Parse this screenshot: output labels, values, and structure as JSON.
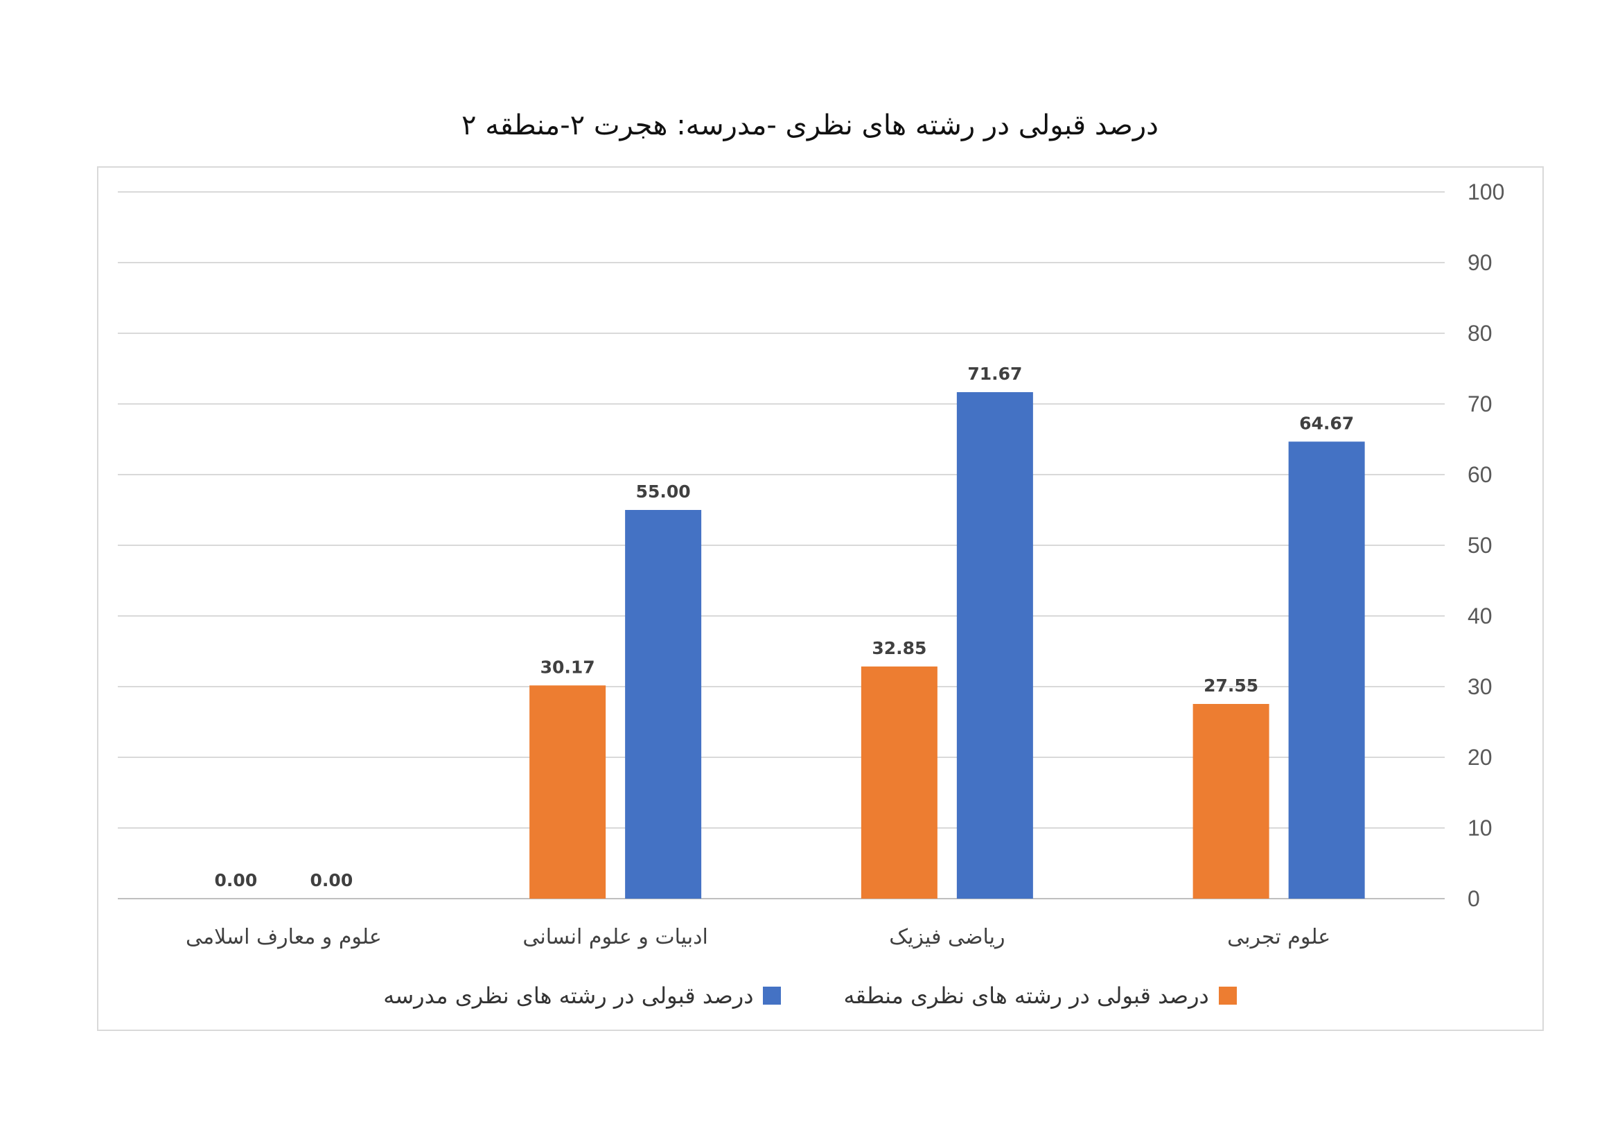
{
  "chart_data": {
    "type": "bar",
    "title": "درصد قبولی در رشته های نظری -مدرسه: هجرت ۲-منطقه ۲",
    "categories": [
      "علوم تجربی",
      "ریاضی فیزیک",
      "ادبیات و علوم انسانی",
      "علوم و معارف اسلامی"
    ],
    "series": [
      {
        "name": "درصد قبولی در رشته های نظری منطقه",
        "color": "#ED7D31",
        "values": [
          27.55,
          32.85,
          30.17,
          0.0
        ]
      },
      {
        "name": "درصد قبولی در رشته های نظری مدرسه",
        "color": "#4472C4",
        "values": [
          64.67,
          71.67,
          55.0,
          0.0
        ]
      }
    ],
    "ylim": [
      0,
      100
    ],
    "yticks": [
      0,
      10,
      20,
      30,
      40,
      50,
      60,
      70,
      80,
      90,
      100
    ],
    "y_axis_side": "right",
    "category_order": "right-to-left",
    "grid": true,
    "legend": "bottom",
    "data_labels": true
  }
}
